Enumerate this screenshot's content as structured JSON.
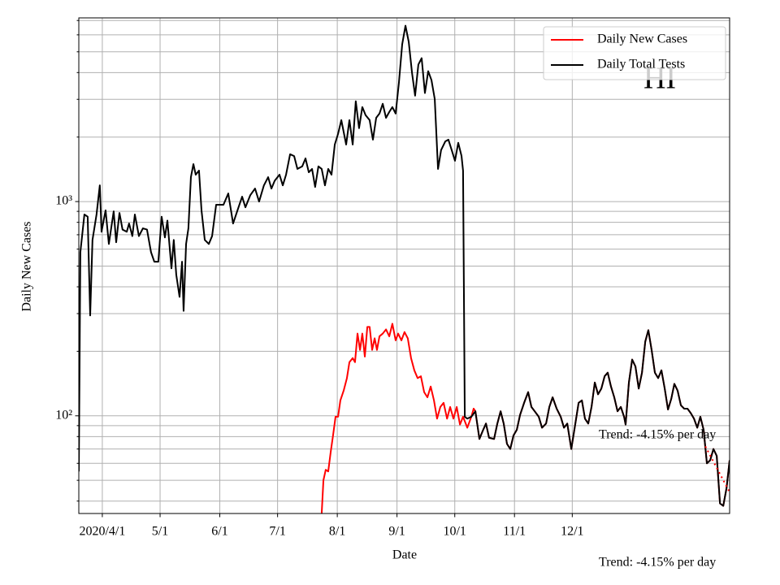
{
  "chart_data": {
    "type": "line",
    "ylabel": "Daily New Cases",
    "xlabel": "Date",
    "state_label": "HI",
    "annotations": [
      "Trend: -4.15% per day",
      "Trend: -4.15% per day"
    ],
    "log_y": true,
    "grid": true,
    "legend": "upper right",
    "xlim": [
      -12.2,
      325.7
    ],
    "ylim": [
      35,
      7200
    ],
    "xticks": [
      {
        "value": 0,
        "label": "2020/4/1"
      },
      {
        "value": 30,
        "label": "5/1"
      },
      {
        "value": 61,
        "label": "6/1"
      },
      {
        "value": 91,
        "label": "7/1"
      },
      {
        "value": 122,
        "label": "8/1"
      },
      {
        "value": 153,
        "label": "9/1"
      },
      {
        "value": 183,
        "label": "10/1"
      },
      {
        "value": 214,
        "label": "11/1"
      },
      {
        "value": 244,
        "label": "12/1"
      }
    ],
    "yticks": [
      {
        "value": 100,
        "label": "10²"
      },
      {
        "value": 1000,
        "label": "10³"
      }
    ],
    "yminorticks": [
      40,
      50,
      60,
      70,
      80,
      90,
      200,
      300,
      400,
      500,
      600,
      700,
      800,
      900,
      2000,
      3000,
      4000,
      5000,
      6000,
      7000
    ],
    "trend_line": {
      "color": "#ff0000",
      "x": [
        313.1,
        325.7
      ],
      "values": [
        72,
        44
      ]
    },
    "series": [
      {
        "name": "Daily New Cases",
        "color": "#ff0000",
        "x": [
          113.9,
          114.8,
          116.0,
          117.3,
          118.6,
          119.8,
          121.1,
          122.4,
          123.6,
          125.3,
          127.0,
          128.3,
          130.0,
          131.2,
          132.5,
          133.8,
          135.0,
          136.3,
          137.6,
          138.8,
          140.1,
          141.4,
          142.6,
          143.9,
          145.6,
          147.3,
          149.0,
          150.6,
          152.3,
          153.6,
          155.3,
          156.9,
          158.6,
          160.3,
          162.0,
          163.7,
          165.4,
          167.1,
          168.8,
          170.5,
          172.2,
          173.8,
          175.5,
          177.2,
          179.0,
          180.6,
          182.3,
          184.0,
          185.7,
          187.3,
          189.5,
          191.6,
          192.8,
          193.7,
          195.8,
          197.5,
          199.2,
          200.8,
          203.4,
          205.1,
          206.8,
          208.4,
          210.1,
          211.8,
          213.5,
          215.2,
          216.9,
          219.0,
          221.1,
          222.8,
          224.5,
          226.6,
          228.3,
          230.4,
          232.1,
          233.8,
          235.9,
          238.0,
          239.7,
          241.4,
          243.5,
          245.6,
          247.3,
          249.0,
          250.6,
          252.3,
          254.0,
          255.7,
          257.4,
          259.1,
          260.8,
          262.4,
          264.1,
          265.8,
          267.5,
          269.2,
          270.9,
          271.7,
          273.4,
          275.1,
          276.8,
          278.5,
          280.2,
          281.9,
          283.5,
          285.2,
          286.9,
          288.6,
          290.3,
          292.0,
          293.7,
          295.4,
          297.0,
          298.7,
          300.4,
          302.1,
          303.8,
          305.5,
          307.2,
          308.9,
          310.5,
          312.2,
          313.9,
          315.6,
          317.3,
          319.0,
          320.7,
          322.4,
          324.1,
          325.7
        ],
        "values": [
          35,
          50,
          56,
          55,
          68,
          81,
          99,
          99,
          118,
          131,
          150,
          178,
          186,
          178,
          242,
          203,
          242,
          189,
          260,
          260,
          203,
          230,
          203,
          235,
          242,
          253,
          235,
          269,
          225,
          242,
          225,
          246,
          230,
          186,
          163,
          150,
          153,
          129,
          122,
          137,
          118,
          97,
          110,
          115,
          97,
          110,
          97,
          110,
          91,
          99,
          88,
          99,
          108,
          105,
          78,
          85,
          92,
          79,
          78,
          92,
          105,
          92,
          74,
          70,
          81,
          86,
          101,
          115,
          129,
          110,
          105,
          99,
          88,
          92,
          110,
          122,
          108,
          99,
          88,
          92,
          70,
          92,
          115,
          118,
          97,
          92,
          110,
          143,
          126,
          134,
          153,
          159,
          137,
          122,
          105,
          110,
          99,
          91,
          143,
          183,
          170,
          134,
          159,
          222,
          251,
          203,
          159,
          150,
          163,
          134,
          107,
          120,
          141,
          131,
          112,
          108,
          108,
          103,
          97,
          88,
          99,
          86,
          60,
          62,
          70,
          65,
          39,
          38,
          46,
          62
        ]
      },
      {
        "name": "Daily Total Tests",
        "color": "#000000",
        "x": [
          -12.2,
          -11.4,
          -9.3,
          -7.6,
          -6.3,
          -5.1,
          -3.0,
          -1.3,
          -0.4,
          1.7,
          3.4,
          5.9,
          7.2,
          8.9,
          10.5,
          12.7,
          13.9,
          15.6,
          16.9,
          19.0,
          21.1,
          23.2,
          25.3,
          27.0,
          29.1,
          30.8,
          32.5,
          33.8,
          35.9,
          37.1,
          38.4,
          40.1,
          41.4,
          42.2,
          43.5,
          44.7,
          46.0,
          47.3,
          48.5,
          50.2,
          51.5,
          53.2,
          55.3,
          57.0,
          59.1,
          61.2,
          62.9,
          65.4,
          67.9,
          70.0,
          72.6,
          74.3,
          76.8,
          79.3,
          81.4,
          83.9,
          86.1,
          87.8,
          89.5,
          92.0,
          93.7,
          95.4,
          97.5,
          99.6,
          101.3,
          103.8,
          105.5,
          107.2,
          108.9,
          110.5,
          112.2,
          113.9,
          115.6,
          117.3,
          119.0,
          120.7,
          122.4,
          124.1,
          126.6,
          128.3,
          130.0,
          131.6,
          133.3,
          135.0,
          136.7,
          138.8,
          140.5,
          142.2,
          143.9,
          145.6,
          147.3,
          149.0,
          150.6,
          152.3,
          154.0,
          155.7,
          157.4,
          159.1,
          160.8,
          162.4,
          164.1,
          165.8,
          167.5,
          169.2,
          170.9,
          172.6,
          174.3,
          175.9,
          178.1,
          179.7,
          181.4,
          183.1,
          184.8,
          186.5,
          187.3,
          188.2,
          189.5,
          191.6,
          193.7,
          195.8,
          197.5,
          199.2,
          200.8,
          203.4,
          205.1,
          206.8,
          208.4,
          210.1,
          211.8,
          213.5,
          215.2,
          216.9,
          219.0,
          221.1,
          222.8,
          224.5,
          226.6,
          228.3,
          230.4,
          232.1,
          233.8,
          235.9,
          238.0,
          239.7,
          241.4,
          243.5,
          245.6,
          247.3,
          249.0,
          250.6,
          252.3,
          254.0,
          255.7,
          257.4,
          259.1,
          260.8,
          262.4,
          264.1,
          265.8,
          267.5,
          269.2,
          270.9,
          271.7,
          273.4,
          275.1,
          276.8,
          278.5,
          280.2,
          281.9,
          283.5,
          285.2,
          286.9,
          288.6,
          290.3,
          292.0,
          293.7,
          295.4,
          297.0,
          298.7,
          300.4,
          302.1,
          303.8,
          305.5,
          307.2,
          308.9,
          310.5,
          312.2,
          313.9,
          315.6,
          317.3,
          319.0,
          320.7,
          322.4,
          324.1,
          325.7
        ],
        "values": [
          55,
          580,
          870,
          850,
          294,
          662,
          870,
          1190,
          723,
          910,
          634,
          900,
          646,
          885,
          740,
          723,
          790,
          690,
          870,
          690,
          750,
          740,
          580,
          524,
          524,
          850,
          680,
          815,
          488,
          662,
          455,
          359,
          524,
          309,
          634,
          750,
          1300,
          1496,
          1335,
          1395,
          910,
          662,
          634,
          690,
          966,
          966,
          966,
          1091,
          790,
          900,
          1054,
          940,
          1070,
          1150,
          1000,
          1190,
          1300,
          1150,
          1250,
          1335,
          1190,
          1335,
          1663,
          1630,
          1420,
          1460,
          1590,
          1370,
          1420,
          1170,
          1460,
          1420,
          1190,
          1420,
          1335,
          1846,
          2070,
          2400,
          1846,
          2400,
          1846,
          2940,
          2200,
          2760,
          2530,
          2400,
          1945,
          2460,
          2575,
          2860,
          2460,
          2620,
          2760,
          2575,
          3590,
          5420,
          6620,
          5560,
          3990,
          3120,
          4360,
          4670,
          3210,
          4060,
          3690,
          3010,
          1420,
          1740,
          1910,
          1945,
          1740,
          1550,
          1880,
          1633,
          1393,
          99,
          97,
          99,
          105,
          78,
          85,
          92,
          79,
          78,
          92,
          105,
          92,
          74,
          70,
          81,
          86,
          101,
          115,
          129,
          110,
          105,
          99,
          88,
          92,
          110,
          122,
          108,
          99,
          88,
          92,
          70,
          92,
          115,
          118,
          97,
          92,
          110,
          143,
          126,
          134,
          153,
          159,
          137,
          122,
          105,
          110,
          99,
          91,
          143,
          183,
          170,
          134,
          159,
          222,
          251,
          203,
          159,
          150,
          163,
          134,
          107,
          120,
          141,
          131,
          112,
          108,
          108,
          103,
          97,
          88,
          99,
          86,
          60,
          62,
          70,
          65,
          39,
          38,
          46,
          62
        ]
      }
    ]
  }
}
